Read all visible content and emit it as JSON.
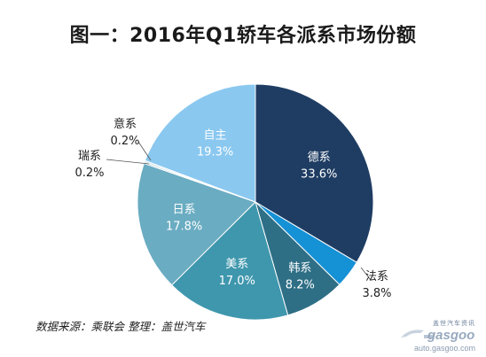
{
  "title": "图一：2016年Q1轿车各派系市场份额",
  "source_note": "数据来源：乘联会  整理：盖世汽车",
  "watermark": {
    "cn": "盖世汽车资讯",
    "logo": "gasgoo",
    "url": "auto.gasgoo.com"
  },
  "chart_data": {
    "type": "pie",
    "start_angle_deg": 0,
    "direction": "clockwise",
    "slices": [
      {
        "label": "德系",
        "value": 33.6,
        "display": "33.6%",
        "color": "#1f3d63"
      },
      {
        "label": "法系",
        "value": 3.8,
        "display": "3.8%",
        "color": "#1591d6"
      },
      {
        "label": "韩系",
        "value": 8.2,
        "display": "8.2%",
        "color": "#2e6f86"
      },
      {
        "label": "美系",
        "value": 17.0,
        "display": "17.0%",
        "color": "#3f97ad"
      },
      {
        "label": "日系",
        "value": 17.8,
        "display": "17.8%",
        "color": "#6aacc2"
      },
      {
        "label": "瑞系",
        "value": 0.2,
        "display": "0.2%",
        "color": "#9fbfc9"
      },
      {
        "label": "意系",
        "value": 0.2,
        "display": "0.2%",
        "color": "#b5d6e2"
      },
      {
        "label": "自主",
        "value": 19.3,
        "display": "19.3%",
        "color": "#8ac8f0"
      }
    ]
  }
}
